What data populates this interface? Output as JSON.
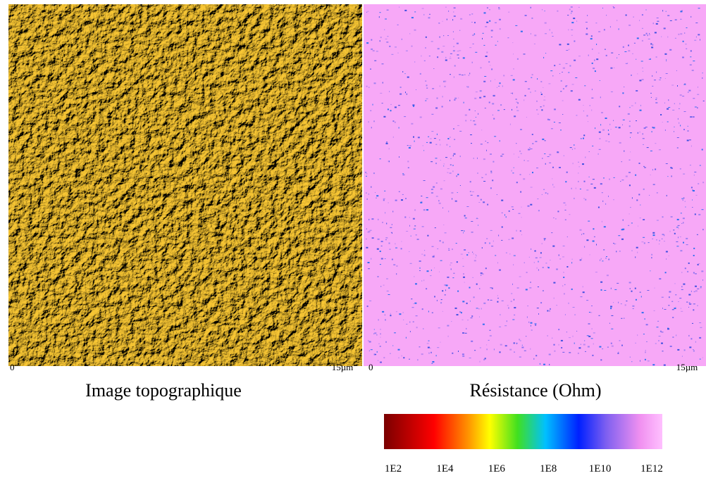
{
  "panels": [
    {
      "title": "Image topographique",
      "scale_start": "0",
      "scale_end": "15µm"
    },
    {
      "title": "Résistance (Ohm)",
      "scale_start": "0",
      "scale_end": "15µm"
    }
  ],
  "colorbar": {
    "ticks": [
      "1E2",
      "1E4",
      "1E6",
      "1E8",
      "1E10",
      "1E12"
    ]
  }
}
